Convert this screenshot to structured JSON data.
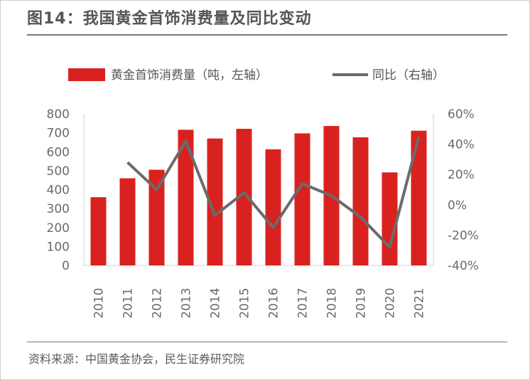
{
  "header": {
    "title": "图14：我国黄金首饰消费量及同比变动"
  },
  "footer": {
    "source": "资料来源：中国黄金协会，民生证券研究院"
  },
  "colors": {
    "bar": "#d9221f",
    "line": "#6b6b6b",
    "title": "#555555"
  },
  "chart_data": {
    "type": "bar",
    "title": "",
    "categories": [
      "2010",
      "2011",
      "2012",
      "2013",
      "2014",
      "2015",
      "2016",
      "2017",
      "2018",
      "2019",
      "2020",
      "2021"
    ],
    "series": [
      {
        "name": "黄金首饰消费量（吨，左轴）",
        "type": "bar",
        "axis": "left",
        "values": [
          360,
          460,
          505,
          716,
          670,
          721,
          613,
          697,
          736,
          676,
          491,
          711
        ]
      },
      {
        "name": "同比（右轴）",
        "type": "line",
        "axis": "right",
        "values": [
          null,
          28,
          10,
          42,
          -7,
          8,
          -15,
          14,
          6,
          -8,
          -28,
          45
        ]
      }
    ],
    "y_left": {
      "lim": [
        0,
        800
      ],
      "ticks": [
        "0",
        "100",
        "200",
        "300",
        "400",
        "500",
        "600",
        "700",
        "800"
      ]
    },
    "y_right": {
      "lim": [
        -40,
        60
      ],
      "ticks": [
        "-40%",
        "-20%",
        "0%",
        "20%",
        "40%",
        "60%"
      ]
    },
    "legend_position": "top",
    "grid": false
  }
}
